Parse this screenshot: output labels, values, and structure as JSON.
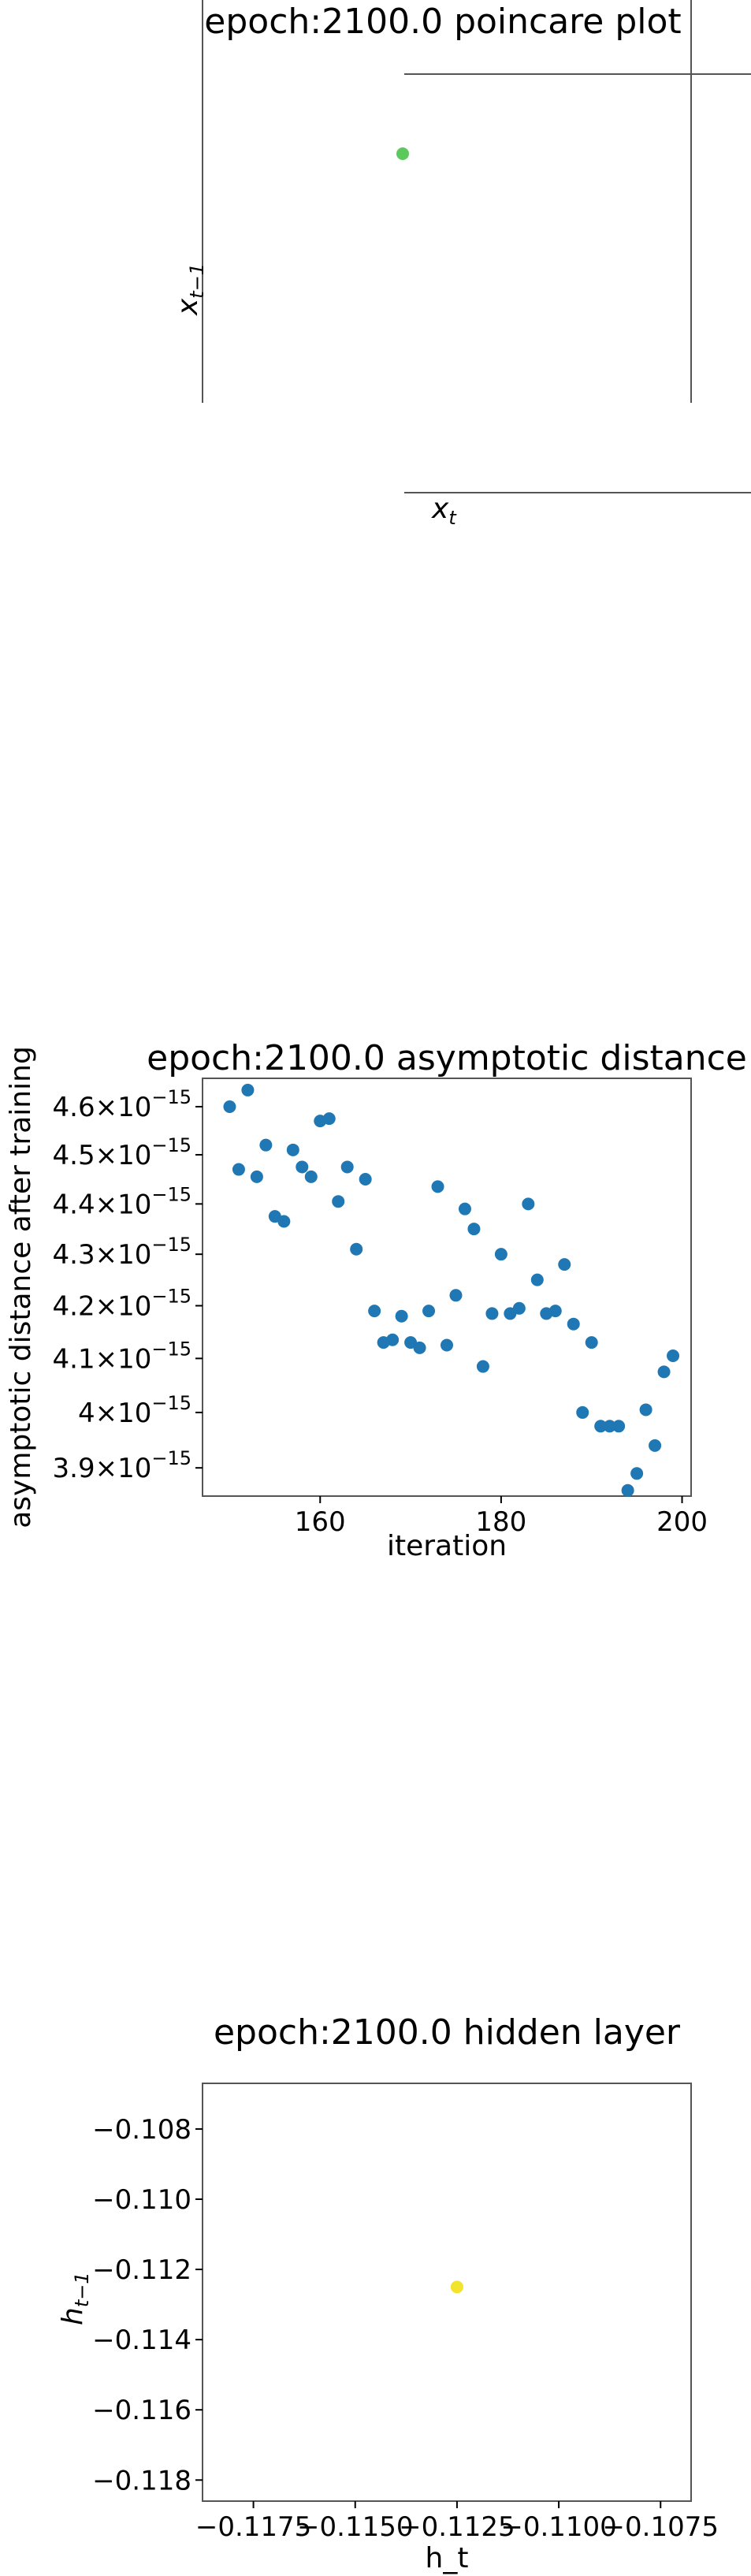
{
  "colors": {
    "axis": "#555555",
    "poincare_point": "#5cc95c",
    "scatter_point": "#1f77b4",
    "hidden_point": "#f2e32d"
  },
  "poincare": {
    "title": "epoch:2100.0 poincare plot",
    "xlabel": "x_t",
    "ylabel": "x_{t-1}"
  },
  "asymptotic": {
    "title": "epoch:2100.0 asymptotic distance",
    "xlabel": "iteration",
    "ylabel": "asymptotic distance after training"
  },
  "hidden": {
    "title": "epoch:2100.0 hidden layer",
    "xlabel": "h_t",
    "ylabel": "h_{t-1}"
  },
  "chart_data": [
    {
      "type": "scatter",
      "title": "epoch:2100.0 poincare plot",
      "xlabel": "x_t",
      "ylabel": "x_{t-1}",
      "points": 1,
      "color": "green"
    },
    {
      "type": "scatter",
      "title": "epoch:2100.0 asymptotic distance",
      "xlabel": "iteration",
      "ylabel": "asymptotic distance after training",
      "y_scale": "log",
      "xlim": [
        147,
        201
      ],
      "ylim": [
        3.85e-15,
        4.66e-15
      ],
      "xticks": [
        160,
        180,
        200
      ],
      "yticks": [
        {
          "value": 4.6e-15,
          "mantissa": "4.6",
          "exp": "−15"
        },
        {
          "value": 4.5e-15,
          "mantissa": "4.5",
          "exp": "−15"
        },
        {
          "value": 4.4e-15,
          "mantissa": "4.4",
          "exp": "−15"
        },
        {
          "value": 4.3e-15,
          "mantissa": "4.3",
          "exp": "−15"
        },
        {
          "value": 4.2e-15,
          "mantissa": "4.2",
          "exp": "−15"
        },
        {
          "value": 4.1e-15,
          "mantissa": "4.1",
          "exp": "−15"
        },
        {
          "value": 4e-15,
          "mantissa": "4",
          "exp": "−15"
        },
        {
          "value": 3.9e-15,
          "mantissa": "3.9",
          "exp": "−15"
        }
      ],
      "x": [
        150,
        151,
        152,
        153,
        154,
        155,
        156,
        157,
        158,
        159,
        160,
        161,
        162,
        163,
        164,
        165,
        166,
        167,
        168,
        169,
        170,
        171,
        172,
        173,
        174,
        175,
        176,
        177,
        178,
        179,
        180,
        181,
        182,
        183,
        184,
        185,
        186,
        187,
        188,
        189,
        190,
        191,
        192,
        193,
        194,
        195,
        196,
        197,
        198,
        199
      ],
      "y": [
        4.6e-15,
        4.47e-15,
        4.635e-15,
        4.455e-15,
        4.52e-15,
        4.375e-15,
        4.365e-15,
        4.51e-15,
        4.475e-15,
        4.455e-15,
        4.57e-15,
        4.575e-15,
        4.405e-15,
        4.475e-15,
        4.31e-15,
        4.45e-15,
        4.19e-15,
        4.13e-15,
        4.135e-15,
        4.18e-15,
        4.13e-15,
        4.12e-15,
        4.19e-15,
        4.435e-15,
        4.125e-15,
        4.22e-15,
        4.39e-15,
        4.35e-15,
        4.085e-15,
        4.185e-15,
        4.3e-15,
        4.185e-15,
        4.195e-15,
        4.4e-15,
        4.25e-15,
        4.185e-15,
        4.19e-15,
        4.28e-15,
        4.165e-15,
        4e-15,
        4.13e-15,
        3.975e-15,
        3.975e-15,
        3.975e-15,
        3.86e-15,
        3.89e-15,
        4.005e-15,
        3.94e-15,
        4.075e-15,
        4.105e-15
      ]
    },
    {
      "type": "scatter",
      "title": "epoch:2100.0 hidden layer",
      "xlabel": "h_t",
      "ylabel": "h_{t-1}",
      "xlim": [
        -0.11875,
        -0.10675
      ],
      "ylim": [
        -0.1186,
        -0.1067
      ],
      "xticks": [
        -0.1175,
        -0.115,
        -0.1125,
        -0.11,
        -0.1075
      ],
      "xtick_labels": [
        "−0.1175",
        "−0.1150",
        "−0.1125",
        "−0.1100",
        "−0.1075"
      ],
      "yticks": [
        -0.108,
        -0.11,
        -0.112,
        -0.114,
        -0.116,
        -0.118
      ],
      "ytick_labels": [
        "−0.108",
        "−0.110",
        "−0.112",
        "−0.114",
        "−0.116",
        "−0.118"
      ],
      "x": [
        -0.1125
      ],
      "y": [
        -0.1125
      ]
    }
  ]
}
